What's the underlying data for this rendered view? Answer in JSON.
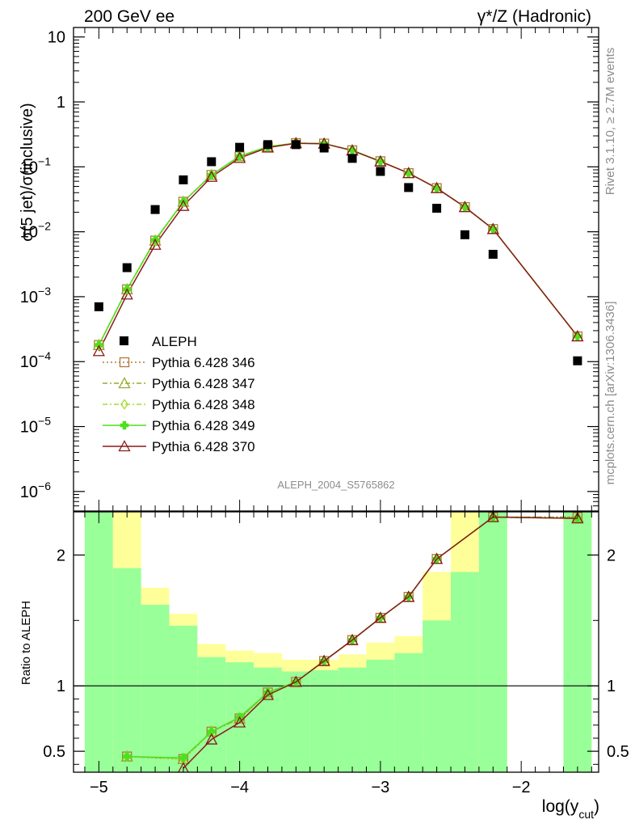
{
  "header": {
    "left_title": "200 GeV ee",
    "right_title": "γ*/Z (Hadronic)"
  },
  "side_labels": {
    "rivet": "Rivet 3.1.10, ≥ 2.7M events",
    "mcplots": "mcplots.cern.ch [arXiv:1306.3436]"
  },
  "watermark": "ALEPH_2004_S5765862",
  "chart_data": [
    {
      "type": "scatter",
      "panel": "main",
      "ylabel": "σ(5 jet)/σ(inclusive)",
      "yscale": "log",
      "ylim": [
        5e-07,
        14
      ],
      "xlim": [
        -5.18,
        -1.45
      ],
      "y_ticks": [
        {
          "value": 1e-06,
          "label": "10",
          "exp": "−6"
        },
        {
          "value": 1e-05,
          "label": "10",
          "exp": "−5"
        },
        {
          "value": 0.0001,
          "label": "10",
          "exp": "−4"
        },
        {
          "value": 0.001,
          "label": "10",
          "exp": "−3"
        },
        {
          "value": 0.01,
          "label": "10",
          "exp": "−2"
        },
        {
          "value": 0.1,
          "label": "10",
          "exp": "−1"
        },
        {
          "value": 1,
          "label": "1",
          "exp": ""
        },
        {
          "value": 10,
          "label": "10",
          "exp": ""
        }
      ],
      "legend_position": "lower-left",
      "data": {
        "name": "ALEPH",
        "color": "#000000",
        "x": [
          -5.0,
          -4.8,
          -4.6,
          -4.4,
          -4.2,
          -4.0,
          -3.8,
          -3.6,
          -3.4,
          -3.2,
          -3.0,
          -2.8,
          -2.6,
          -2.4,
          -2.2,
          -1.6
        ],
        "y": [
          0.0007,
          0.0028,
          0.022,
          0.063,
          0.12,
          0.2,
          0.22,
          0.22,
          0.195,
          0.135,
          0.085,
          0.048,
          0.023,
          0.009,
          0.0045,
          0.000103
        ]
      },
      "series": [
        {
          "name": "Pythia 6.428 346",
          "color": "#b07a3c",
          "marker": "open-square",
          "dash": "2,3",
          "x": [
            -5.0,
            -4.8,
            -4.6,
            -4.4,
            -4.2,
            -4.0,
            -3.8,
            -3.6,
            -3.4,
            -3.2,
            -3.0,
            -2.8,
            -2.6,
            -2.4,
            -2.2,
            -1.6
          ],
          "y": [
            0.00018,
            0.0013,
            0.0073,
            0.029,
            0.075,
            0.145,
            0.205,
            0.232,
            0.228,
            0.18,
            0.122,
            0.08,
            0.047,
            0.024,
            0.011,
            0.000245
          ]
        },
        {
          "name": "Pythia 6.428 347",
          "color": "#9aa82a",
          "marker": "open-triangle",
          "dash": "6,3,2,3",
          "x": [
            -5.0,
            -4.8,
            -4.6,
            -4.4,
            -4.2,
            -4.0,
            -3.8,
            -3.6,
            -3.4,
            -3.2,
            -3.0,
            -2.8,
            -2.6,
            -2.4,
            -2.2,
            -1.6
          ],
          "y": [
            0.00018,
            0.0013,
            0.0073,
            0.029,
            0.075,
            0.145,
            0.205,
            0.232,
            0.228,
            0.18,
            0.122,
            0.08,
            0.047,
            0.024,
            0.011,
            0.000245
          ]
        },
        {
          "name": "Pythia 6.428 348",
          "color": "#a6dc34",
          "marker": "open-diamond",
          "dash": "6,3,2,3",
          "x": [
            -5.0,
            -4.8,
            -4.6,
            -4.4,
            -4.2,
            -4.0,
            -3.8,
            -3.6,
            -3.4,
            -3.2,
            -3.0,
            -2.8,
            -2.6,
            -2.4,
            -2.2,
            -1.6
          ],
          "y": [
            0.00018,
            0.0013,
            0.0074,
            0.029,
            0.075,
            0.145,
            0.205,
            0.232,
            0.228,
            0.18,
            0.122,
            0.08,
            0.047,
            0.024,
            0.011,
            0.000245
          ]
        },
        {
          "name": "Pythia 6.428 349",
          "color": "#4fe01c",
          "marker": "cross",
          "dash": "",
          "x": [
            -5.0,
            -4.8,
            -4.6,
            -4.4,
            -4.2,
            -4.0,
            -3.8,
            -3.6,
            -3.4,
            -3.2,
            -3.0,
            -2.8,
            -2.6,
            -2.4,
            -2.2,
            -1.6
          ],
          "y": [
            0.00018,
            0.0013,
            0.0075,
            0.029,
            0.075,
            0.146,
            0.205,
            0.232,
            0.228,
            0.18,
            0.122,
            0.08,
            0.047,
            0.024,
            0.011,
            0.000245
          ]
        },
        {
          "name": "Pythia 6.428 370",
          "color": "#8a1a1a",
          "marker": "open-triangle",
          "dash": "",
          "x": [
            -5.0,
            -4.8,
            -4.6,
            -4.4,
            -4.2,
            -4.0,
            -3.8,
            -3.6,
            -3.4,
            -3.2,
            -3.0,
            -2.8,
            -2.6,
            -2.4,
            -2.2,
            -1.6
          ],
          "y": [
            0.000145,
            0.00108,
            0.0063,
            0.025,
            0.07,
            0.137,
            0.198,
            0.23,
            0.227,
            0.178,
            0.121,
            0.08,
            0.047,
            0.024,
            0.011,
            0.000245
          ]
        }
      ]
    },
    {
      "type": "line",
      "panel": "ratio",
      "ylabel": "Ratio to ALEPH",
      "xlabel": "log(y",
      "xlabel_sub": "cut",
      "xlabel_close": ")",
      "ylim": [
        0.34,
        2.33
      ],
      "xlim": [
        -5.18,
        -1.45
      ],
      "x_ticks": [
        {
          "value": -5,
          "label": "−5"
        },
        {
          "value": -4,
          "label": "−4"
        },
        {
          "value": -3,
          "label": "−3"
        },
        {
          "value": -2,
          "label": "−2"
        }
      ],
      "y_ticks": [
        {
          "value": 0.5,
          "label": "0.5"
        },
        {
          "value": 1,
          "label": "1"
        },
        {
          "value": 2,
          "label": "2"
        }
      ],
      "reference_line": 1,
      "bands": [
        {
          "x0": -5.1,
          "x1": -4.9,
          "inner": [
            0.34,
            2.33
          ],
          "outer": [
            0.34,
            2.33
          ]
        },
        {
          "x0": -4.9,
          "x1": -4.7,
          "inner": [
            0.34,
            1.9
          ],
          "outer": [
            0.34,
            2.33
          ]
        },
        {
          "x0": -4.7,
          "x1": -4.5,
          "inner": [
            0.34,
            1.62
          ],
          "outer": [
            0.7,
            1.75
          ]
        },
        {
          "x0": -4.5,
          "x1": -4.3,
          "inner": [
            0.34,
            1.46
          ],
          "outer": [
            0.68,
            1.55
          ]
        },
        {
          "x0": -4.3,
          "x1": -4.1,
          "inner": [
            0.34,
            1.22
          ],
          "outer": [
            0.84,
            1.32
          ]
        },
        {
          "x0": -4.1,
          "x1": -3.9,
          "inner": [
            0.34,
            1.18
          ],
          "outer": [
            0.88,
            1.27
          ]
        },
        {
          "x0": -3.9,
          "x1": -3.7,
          "inner": [
            0.34,
            1.14
          ],
          "outer": [
            0.9,
            1.25
          ]
        },
        {
          "x0": -3.7,
          "x1": -3.5,
          "inner": [
            0.34,
            1.11
          ],
          "outer": [
            0.92,
            1.2
          ]
        },
        {
          "x0": -3.5,
          "x1": -3.3,
          "inner": [
            0.34,
            1.12
          ],
          "outer": [
            0.91,
            1.2
          ]
        },
        {
          "x0": -3.3,
          "x1": -3.1,
          "inner": [
            0.34,
            1.14
          ],
          "outer": [
            0.9,
            1.24
          ]
        },
        {
          "x0": -3.1,
          "x1": -2.9,
          "inner": [
            0.34,
            1.2
          ],
          "outer": [
            0.86,
            1.33
          ]
        },
        {
          "x0": -2.9,
          "x1": -2.7,
          "inner": [
            0.34,
            1.25
          ],
          "outer": [
            0.74,
            1.38
          ]
        },
        {
          "x0": -2.7,
          "x1": -2.5,
          "inner": [
            0.34,
            1.5
          ],
          "outer": [
            0.6,
            1.87
          ]
        },
        {
          "x0": -2.5,
          "x1": -2.3,
          "inner": [
            0.34,
            1.87
          ],
          "outer": [
            0.34,
            2.33
          ]
        },
        {
          "x0": -2.3,
          "x1": -2.1,
          "inner": [
            0.34,
            2.33
          ],
          "outer": [
            0.34,
            2.33
          ]
        },
        {
          "x0": -1.7,
          "x1": -1.5,
          "inner": [
            0.34,
            2.33
          ],
          "outer": [
            0.34,
            2.33
          ]
        }
      ],
      "series": [
        {
          "name": "Pythia 6.428 346",
          "color": "#b07a3c",
          "marker": "open-square",
          "dash": "2,3",
          "x": [
            -4.8,
            -4.4,
            -4.2,
            -4.0,
            -3.8,
            -3.6,
            -3.4,
            -3.2,
            -3.0,
            -2.8,
            -2.6,
            -2.2,
            -1.6
          ],
          "y": [
            0.46,
            0.44,
            0.65,
            0.75,
            0.95,
            1.03,
            1.19,
            1.35,
            1.52,
            1.68,
            1.97,
            2.29,
            2.29
          ]
        },
        {
          "name": "Pythia 6.428 347",
          "color": "#9aa82a",
          "marker": "open-triangle",
          "dash": "6,3,2,3",
          "x": [
            -4.8,
            -4.4,
            -4.2,
            -4.0,
            -3.8,
            -3.6,
            -3.4,
            -3.2,
            -3.0,
            -2.8,
            -2.6,
            -2.2,
            -1.6
          ],
          "y": [
            0.46,
            0.44,
            0.65,
            0.75,
            0.95,
            1.03,
            1.19,
            1.35,
            1.52,
            1.68,
            1.97,
            2.29,
            2.29
          ]
        },
        {
          "name": "Pythia 6.428 348",
          "color": "#a6dc34",
          "marker": "open-diamond",
          "dash": "6,3,2,3",
          "x": [
            -4.8,
            -4.4,
            -4.2,
            -4.0,
            -3.8,
            -3.6,
            -3.4,
            -3.2,
            -3.0,
            -2.8,
            -2.6,
            -2.2,
            -1.6
          ],
          "y": [
            0.46,
            0.44,
            0.65,
            0.76,
            0.95,
            1.03,
            1.19,
            1.35,
            1.52,
            1.68,
            1.97,
            2.29,
            2.28
          ]
        },
        {
          "name": "Pythia 6.428 349",
          "color": "#4fe01c",
          "marker": "cross",
          "dash": "",
          "x": [
            -4.8,
            -4.4,
            -4.2,
            -4.0,
            -3.8,
            -3.6,
            -3.4,
            -3.2,
            -3.0,
            -2.8,
            -2.6,
            -2.2,
            -1.6
          ],
          "y": [
            0.46,
            0.45,
            0.65,
            0.76,
            0.95,
            1.03,
            1.19,
            1.35,
            1.52,
            1.68,
            1.97,
            2.29,
            2.28
          ]
        },
        {
          "name": "Pythia 6.428 370",
          "color": "#8a1a1a",
          "marker": "open-triangle",
          "dash": "",
          "x": [
            -4.4,
            -4.2,
            -4.0,
            -3.8,
            -3.6,
            -3.4,
            -3.2,
            -3.0,
            -2.8,
            -2.6,
            -2.2,
            -1.6
          ],
          "y": [
            0.37,
            0.59,
            0.72,
            0.93,
            1.03,
            1.19,
            1.35,
            1.52,
            1.68,
            1.97,
            2.29,
            2.28
          ]
        }
      ]
    }
  ]
}
